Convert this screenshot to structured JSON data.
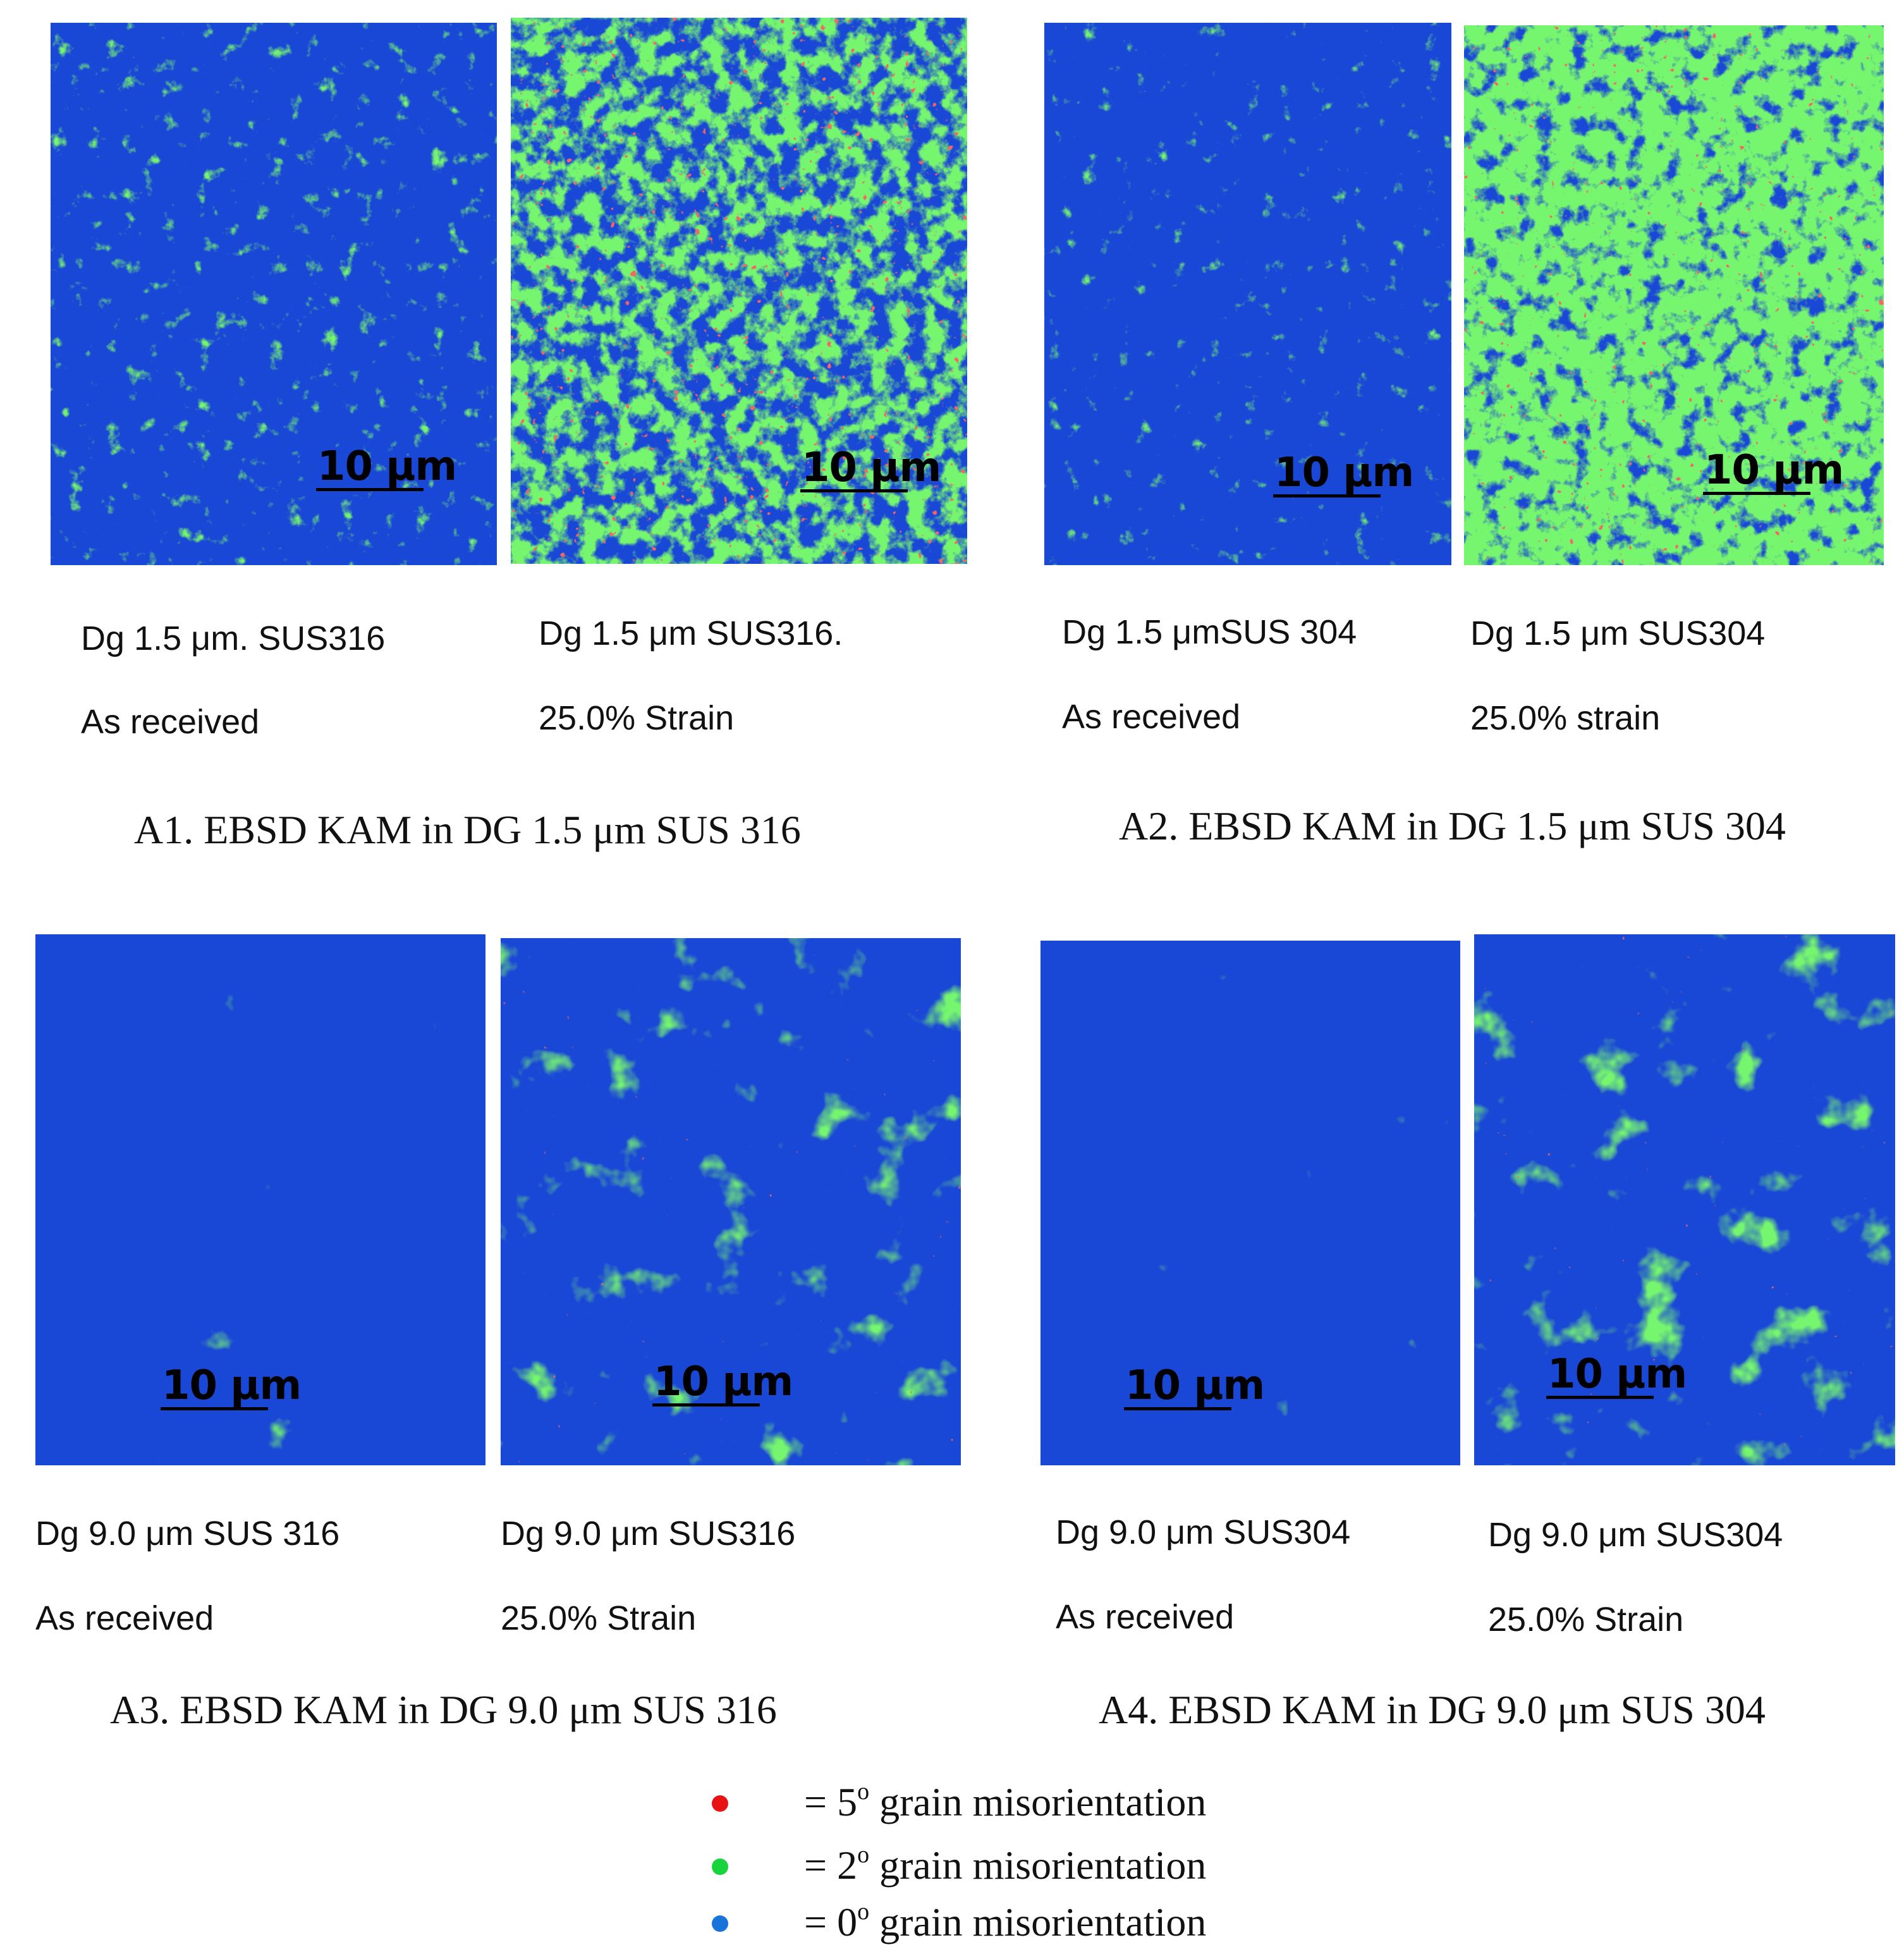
{
  "groups": [
    {
      "title": "A1. EBSD KAM in DG 1.5 μm SUS 316",
      "panels": [
        {
          "scale": "10 μm",
          "line1": "Dg 1.5 μm. SUS316",
          "line2": "As received",
          "strain": 0.15,
          "hot": 0.0
        },
        {
          "scale": "10 μm",
          "line1": "Dg 1.5 μm SUS316.",
          "line2": "25.0% Strain",
          "strain": 0.55,
          "hot": 0.02
        }
      ]
    },
    {
      "title": "A2. EBSD KAM in DG 1.5 μm SUS 304",
      "panels": [
        {
          "scale": "10 μm",
          "line1": "Dg 1.5 μmSUS 304",
          "line2": "As received",
          "strain": 0.08,
          "hot": 0.0
        },
        {
          "scale": "10 μm",
          "line1": "Dg 1.5 μm SUS304",
          "line2": "25.0% strain",
          "strain": 0.75,
          "hot": 0.015
        }
      ]
    },
    {
      "title": "A3. EBSD KAM in DG 9.0 μm SUS 316",
      "panels": [
        {
          "scale": "10 μm",
          "line1": "Dg 9.0 μm SUS 316",
          "line2": "As received",
          "strain": 0.04,
          "hot": 0.0
        },
        {
          "scale": "10 μm",
          "line1": "Dg 9.0 μm SUS316",
          "line2": "25.0% Strain",
          "strain": 0.3,
          "hot": 0.001
        }
      ]
    },
    {
      "title": "A4. EBSD KAM in DG 9.0 μm SUS 304",
      "panels": [
        {
          "scale": "10 μm",
          "line1": "Dg 9.0 μm SUS304",
          "line2": "As received",
          "strain": 0.07,
          "hot": 0.0
        },
        {
          "scale": "10 μm",
          "line1": "Dg 9.0 μm SUS304",
          "line2": "25.0% Strain",
          "strain": 0.35,
          "hot": 0.001
        }
      ]
    }
  ],
  "legend": [
    {
      "color": "#e81414",
      "prefix": "= 5",
      "sup": "o",
      "suffix": " grain misorientation"
    },
    {
      "color": "#18d43c",
      "prefix": "= 2",
      "sup": "o",
      "suffix": " grain misorientation"
    },
    {
      "color": "#1874d8",
      "prefix": "= 0",
      "sup": "o",
      "suffix": " grain misorientation"
    }
  ],
  "colors": {
    "blue": "#1a48d6",
    "green": "#2ee82a",
    "red": "#e82020"
  }
}
